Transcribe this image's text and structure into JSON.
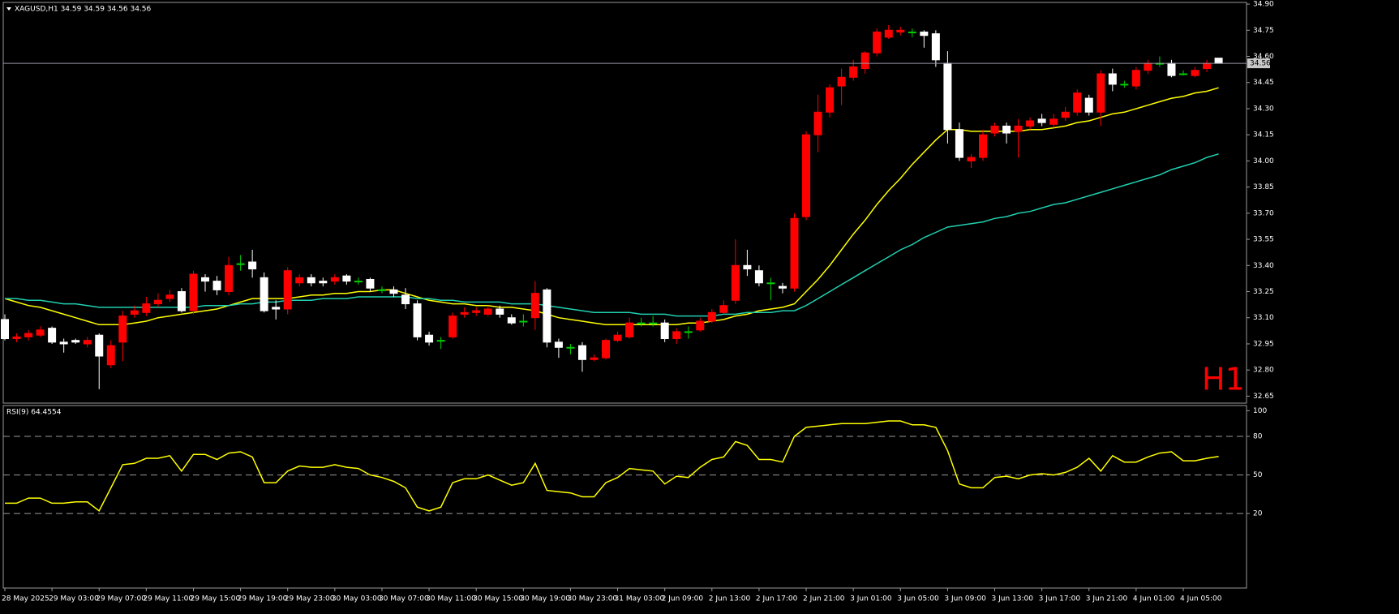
{
  "chart_data": [
    {
      "type": "candlestick",
      "title": "XAGUSD,H1  34.59 34.59 34.56 34.56",
      "timeframe": "H1",
      "categories": [
        "28 May 2025",
        null,
        null,
        null,
        "29 May 03:00",
        null,
        null,
        null,
        "29 May 07:00",
        null,
        null,
        null,
        "29 May 11:00",
        null,
        null,
        null,
        "29 May 15:00",
        null,
        null,
        null,
        "29 May 19:00",
        null,
        null,
        null,
        "29 May 23:00",
        null,
        null,
        null,
        "30 May 03:00",
        null,
        null,
        null,
        "30 May 07:00",
        null,
        null,
        null,
        "30 May 11:00",
        null,
        null,
        null,
        "30 May 15:00",
        null,
        null,
        null,
        "30 May 19:00",
        null,
        null,
        null,
        "30 May 23:00",
        null,
        null,
        null,
        "31 May 03:00",
        null,
        null,
        null,
        "2 Jun 09:00",
        null,
        null,
        null,
        "2 Jun 13:00",
        null,
        null,
        null,
        "2 Jun 17:00",
        null,
        null,
        null,
        "2 Jun 21:00",
        null,
        null,
        null,
        "3 Jun 01:00",
        null,
        null,
        null,
        "3 Jun 05:00",
        null,
        null,
        null,
        "3 Jun 09:00",
        null,
        null,
        null,
        "3 Jun 13:00",
        null,
        null,
        null,
        "3 Jun 17:00",
        null,
        null,
        null,
        "3 Jun 21:00",
        null,
        null,
        null,
        "4 Jun 01:00",
        null,
        null,
        null,
        "4 Jun 05:00",
        null,
        null,
        null
      ],
      "open": [
        33.09,
        32.98,
        32.99,
        33.0,
        33.04,
        32.96,
        32.97,
        32.95,
        33.0,
        32.83,
        32.96,
        33.12,
        33.13,
        33.18,
        33.21,
        33.25,
        33.14,
        33.33,
        33.31,
        33.25,
        33.41,
        33.42,
        33.33,
        33.16,
        33.15,
        33.3,
        33.33,
        33.31,
        33.31,
        33.34,
        33.31,
        33.32,
        33.26,
        33.26,
        33.23,
        33.18,
        33.0,
        32.97,
        32.99,
        33.12,
        33.13,
        33.12,
        33.15,
        33.1,
        33.08,
        33.1,
        33.26,
        32.96,
        32.93,
        32.94,
        32.86,
        32.87,
        32.97,
        32.99,
        33.07,
        33.07,
        33.07,
        32.98,
        33.02,
        33.03,
        33.08,
        33.13,
        33.2,
        33.4,
        33.37,
        33.3,
        33.28,
        33.27,
        33.68,
        34.15,
        34.28,
        34.43,
        34.48,
        34.53,
        34.62,
        34.71,
        34.74,
        34.74,
        34.74,
        34.73,
        34.56,
        34.18,
        34.0,
        34.02,
        34.16,
        34.2,
        34.17,
        34.2,
        34.24,
        34.21,
        34.25,
        34.28,
        34.36,
        34.28,
        34.5,
        34.44,
        34.43,
        34.52,
        34.56,
        34.56,
        34.5,
        34.49,
        34.53,
        34.59
      ],
      "high": [
        33.12,
        33.01,
        33.03,
        33.05,
        33.05,
        32.98,
        32.98,
        32.99,
        33.01,
        32.97,
        33.14,
        33.17,
        33.22,
        33.24,
        33.26,
        33.27,
        33.37,
        33.35,
        33.34,
        33.45,
        33.46,
        33.49,
        33.36,
        33.2,
        33.39,
        33.35,
        33.35,
        33.33,
        33.35,
        33.35,
        33.33,
        33.33,
        33.28,
        33.28,
        33.27,
        33.2,
        33.02,
        32.99,
        33.13,
        33.16,
        33.16,
        33.17,
        33.17,
        33.12,
        33.12,
        33.31,
        33.27,
        32.98,
        32.95,
        32.96,
        32.89,
        32.98,
        33.02,
        33.1,
        33.1,
        33.11,
        33.09,
        33.04,
        33.05,
        33.1,
        33.15,
        33.2,
        33.55,
        33.49,
        33.4,
        33.33,
        33.3,
        33.7,
        34.17,
        34.38,
        34.44,
        34.53,
        34.58,
        34.63,
        34.76,
        34.78,
        34.77,
        34.76,
        34.75,
        34.75,
        34.63,
        34.22,
        34.04,
        34.18,
        34.22,
        34.22,
        34.24,
        34.25,
        34.27,
        34.27,
        34.31,
        34.41,
        34.38,
        34.52,
        34.53,
        34.46,
        34.54,
        34.58,
        34.6,
        34.58,
        34.52,
        34.54,
        34.58,
        34.59
      ],
      "low": [
        32.97,
        32.96,
        32.97,
        32.99,
        32.95,
        32.9,
        32.95,
        32.93,
        32.69,
        32.81,
        32.85,
        33.1,
        33.11,
        33.16,
        33.19,
        33.13,
        33.12,
        33.25,
        33.23,
        33.23,
        33.37,
        33.33,
        33.13,
        33.09,
        33.12,
        33.28,
        33.28,
        33.28,
        33.29,
        33.29,
        33.29,
        33.25,
        33.24,
        33.22,
        33.15,
        32.97,
        32.94,
        32.92,
        32.98,
        33.1,
        33.11,
        33.11,
        33.1,
        33.06,
        33.05,
        33.03,
        32.93,
        32.87,
        32.89,
        32.79,
        32.85,
        32.86,
        32.96,
        32.98,
        33.05,
        33.05,
        32.96,
        32.95,
        32.98,
        33.02,
        33.07,
        33.12,
        33.18,
        33.34,
        33.28,
        33.2,
        33.24,
        33.25,
        33.66,
        34.05,
        34.25,
        34.32,
        34.46,
        34.5,
        34.6,
        34.7,
        34.72,
        34.71,
        34.65,
        34.54,
        34.1,
        34.0,
        33.96,
        34.0,
        34.14,
        34.1,
        34.02,
        34.18,
        34.2,
        34.19,
        34.23,
        34.26,
        34.26,
        34.2,
        34.4,
        34.42,
        34.41,
        34.5,
        34.54,
        34.48,
        34.49,
        34.48,
        34.51,
        34.56
      ],
      "close": [
        32.98,
        32.99,
        33.01,
        33.03,
        32.96,
        32.95,
        32.96,
        32.97,
        32.88,
        32.94,
        33.11,
        33.14,
        33.18,
        33.2,
        33.23,
        33.14,
        33.35,
        33.31,
        33.26,
        33.4,
        33.41,
        33.38,
        33.14,
        33.15,
        33.37,
        33.33,
        33.3,
        33.3,
        33.33,
        33.31,
        33.31,
        33.27,
        33.26,
        33.24,
        33.18,
        32.99,
        32.96,
        32.97,
        33.11,
        33.13,
        33.14,
        33.15,
        33.12,
        33.07,
        33.08,
        33.24,
        32.96,
        32.93,
        32.93,
        32.86,
        32.87,
        32.97,
        33.0,
        33.07,
        33.07,
        33.07,
        32.98,
        33.02,
        33.02,
        33.08,
        33.13,
        33.17,
        33.4,
        33.38,
        33.3,
        33.3,
        33.27,
        33.67,
        34.15,
        34.28,
        34.42,
        34.48,
        34.54,
        34.62,
        34.74,
        34.75,
        34.75,
        34.74,
        34.72,
        34.58,
        34.18,
        34.02,
        34.02,
        34.15,
        34.2,
        34.16,
        34.2,
        34.23,
        34.22,
        34.24,
        34.28,
        34.39,
        34.28,
        34.5,
        34.44,
        34.44,
        34.52,
        34.56,
        34.56,
        34.49,
        34.5,
        34.52,
        34.56,
        34.56
      ],
      "up_color": "#ff0000",
      "down_color": "#ffffff",
      "doji_color": "#00d000",
      "series": [
        {
          "color": "#ffff00",
          "values": [
            33.21,
            33.19,
            33.17,
            33.16,
            33.14,
            33.12,
            33.1,
            33.08,
            33.06,
            33.06,
            33.06,
            33.07,
            33.08,
            33.1,
            33.11,
            33.12,
            33.13,
            33.14,
            33.15,
            33.17,
            33.19,
            33.21,
            33.21,
            33.21,
            33.21,
            33.22,
            33.23,
            33.23,
            33.24,
            33.24,
            33.25,
            33.25,
            33.26,
            33.26,
            33.24,
            33.22,
            33.2,
            33.19,
            33.18,
            33.18,
            33.17,
            33.17,
            33.16,
            33.16,
            33.15,
            33.14,
            33.12,
            33.1,
            33.09,
            33.08,
            33.07,
            33.06,
            33.06,
            33.06,
            33.06,
            33.06,
            33.06,
            33.06,
            33.07,
            33.07,
            33.08,
            33.09,
            33.11,
            33.12,
            33.14,
            33.15,
            33.16,
            33.18,
            33.25,
            33.32,
            33.4,
            33.49,
            33.58,
            33.66,
            33.75,
            33.83,
            33.9,
            33.98,
            34.05,
            34.12,
            34.18,
            34.18,
            34.17,
            34.17,
            34.17,
            34.17,
            34.17,
            34.18,
            34.18,
            34.19,
            34.2,
            34.22,
            34.23,
            34.25,
            34.27,
            34.28,
            34.3,
            34.32,
            34.34,
            34.36,
            34.37,
            34.39,
            34.4,
            34.42
          ]
        },
        {
          "color": "#20d0b0",
          "values": [
            33.21,
            33.21,
            33.2,
            33.2,
            33.19,
            33.18,
            33.18,
            33.17,
            33.16,
            33.16,
            33.16,
            33.16,
            33.16,
            33.16,
            33.16,
            33.16,
            33.16,
            33.17,
            33.17,
            33.17,
            33.18,
            33.18,
            33.19,
            33.19,
            33.2,
            33.2,
            33.2,
            33.21,
            33.21,
            33.21,
            33.22,
            33.22,
            33.22,
            33.22,
            33.22,
            33.21,
            33.21,
            33.2,
            33.2,
            33.19,
            33.19,
            33.19,
            33.19,
            33.18,
            33.18,
            33.18,
            33.17,
            33.16,
            33.15,
            33.14,
            33.13,
            33.13,
            33.13,
            33.13,
            33.12,
            33.12,
            33.12,
            33.11,
            33.11,
            33.11,
            33.11,
            33.12,
            33.12,
            33.13,
            33.13,
            33.13,
            33.14,
            33.14,
            33.17,
            33.21,
            33.25,
            33.29,
            33.33,
            33.37,
            33.41,
            33.45,
            33.49,
            33.52,
            33.56,
            33.59,
            33.62,
            33.63,
            33.64,
            33.65,
            33.67,
            33.68,
            33.7,
            33.71,
            33.73,
            33.75,
            33.76,
            33.78,
            33.8,
            33.82,
            33.84,
            33.86,
            33.88,
            33.9,
            33.92,
            33.95,
            33.97,
            33.99,
            34.02,
            34.04
          ]
        }
      ],
      "last_price": 34.56,
      "ylim": [
        32.61,
        34.905
      ],
      "yticks": [
        {
          "value": 34.9,
          "label": "34.90"
        },
        34.75,
        {
          "value": 34.6,
          "label": "34.60"
        },
        34.45,
        {
          "value": 34.3,
          "label": "34.30"
        },
        34.15,
        {
          "value": 34,
          "label": "34.00"
        },
        33.85,
        {
          "value": 33.7,
          "label": "33.70"
        },
        33.55,
        {
          "value": 33.4,
          "label": "33.40"
        },
        33.25,
        {
          "value": 33.1,
          "label": "33.10"
        },
        32.95,
        {
          "value": 32.8,
          "label": "32.80"
        },
        32.65
      ]
    },
    {
      "type": "line",
      "title": "RSI(9) 64.4554",
      "series": [
        {
          "color": "#ffff00",
          "values": [
            28,
            28,
            32,
            32,
            28,
            28,
            29,
            29,
            22,
            40,
            58,
            59,
            63,
            63,
            65,
            53,
            66,
            66,
            62,
            67,
            68,
            64,
            44,
            44,
            53,
            57,
            56,
            56,
            58,
            56,
            55,
            50,
            48,
            45,
            40,
            25,
            22,
            25,
            44,
            47,
            47,
            50,
            46,
            42,
            44,
            59,
            38,
            37,
            36,
            33,
            33,
            44,
            48,
            55,
            54,
            53,
            43,
            49,
            48,
            56,
            62,
            64,
            76,
            73,
            62,
            62,
            60,
            80,
            87,
            88,
            89,
            90,
            90,
            90,
            91,
            92,
            92,
            89,
            89,
            87,
            69,
            43,
            40,
            40,
            48,
            49,
            47,
            50,
            51,
            50,
            52,
            56,
            63,
            53,
            65,
            60,
            60,
            64,
            67,
            68,
            61,
            61,
            63,
            64.4554
          ]
        }
      ],
      "ylim": [
        -38,
        104
      ],
      "yticks": [
        100,
        80,
        50,
        20
      ],
      "levels": [
        80,
        50,
        20
      ]
    }
  ]
}
